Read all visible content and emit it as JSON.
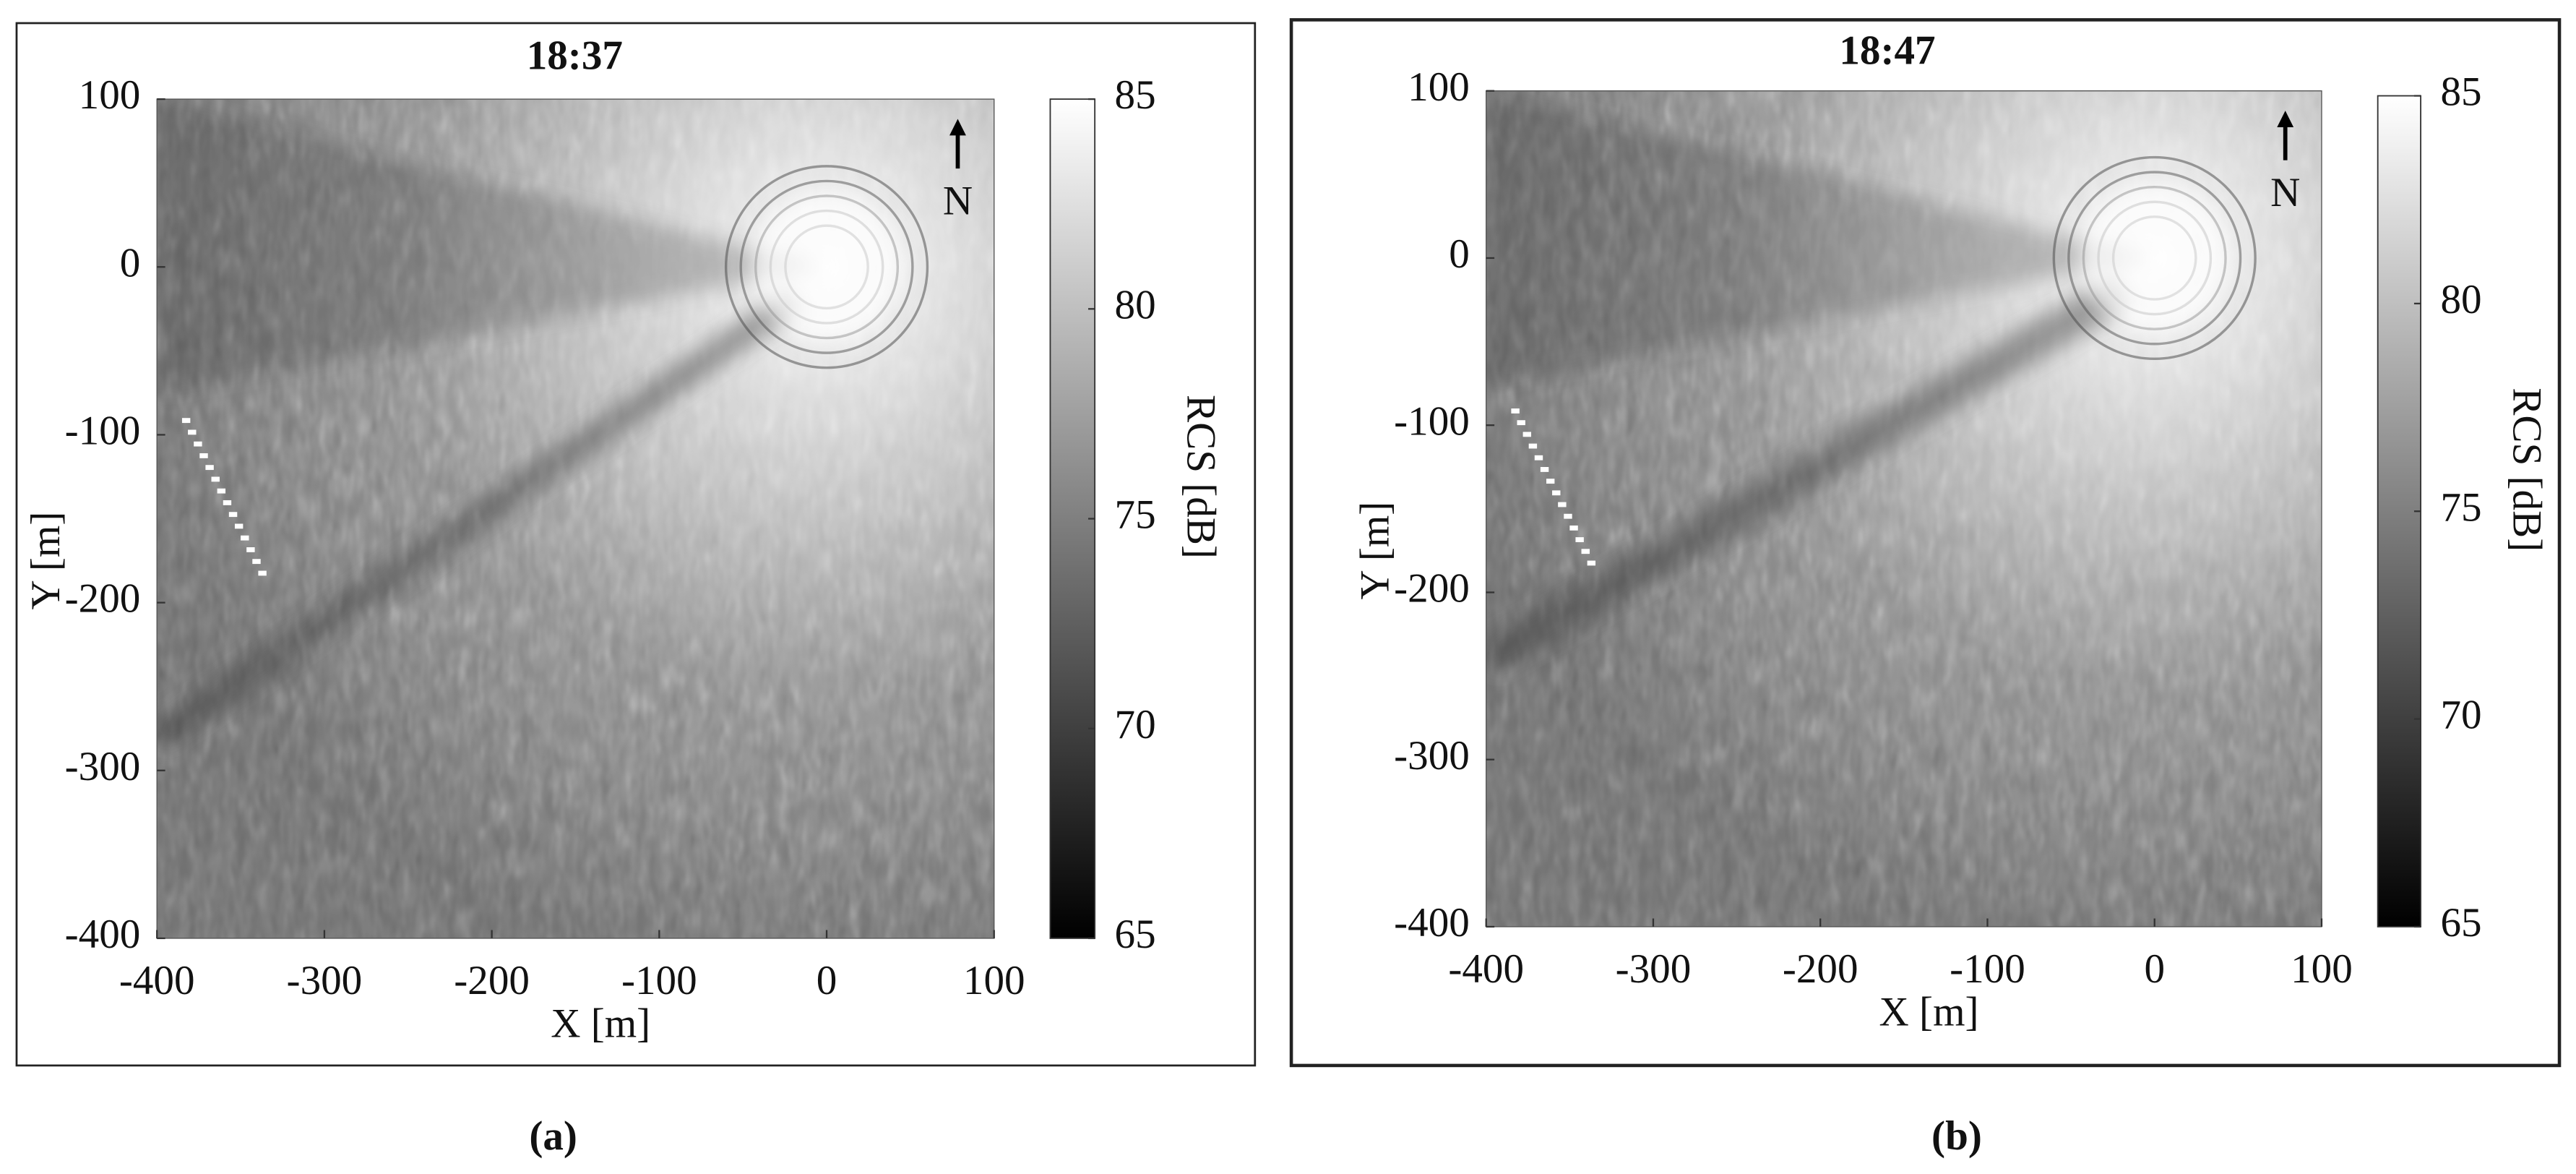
{
  "chart_data": [
    {
      "type": "heatmap",
      "title": "18:37",
      "caption": "(a)",
      "xlabel": "X [m]",
      "ylabel": "Y [m]",
      "colorbar_label": "RCS [dB]",
      "north_label": "N",
      "colormap": "gray",
      "xlim": [
        -400,
        100
      ],
      "ylim": [
        -400,
        100
      ],
      "xticks": [
        -400,
        -300,
        -200,
        -100,
        0,
        100
      ],
      "yticks": [
        -400,
        -300,
        -200,
        -100,
        0,
        100
      ],
      "clim": [
        65,
        85
      ],
      "cticks": [
        65,
        70,
        75,
        80,
        85
      ]
    },
    {
      "type": "heatmap",
      "title": "18:47",
      "caption": "(b)",
      "xlabel": "X [m]",
      "ylabel": "Y [m]",
      "colorbar_label": "RCS [dB]",
      "north_label": "N",
      "colormap": "gray",
      "xlim": [
        -400,
        100
      ],
      "ylim": [
        -400,
        100
      ],
      "xticks": [
        -400,
        -300,
        -200,
        -100,
        0,
        100
      ],
      "yticks": [
        -400,
        -300,
        -200,
        -100,
        0,
        100
      ],
      "clim": [
        65,
        85
      ],
      "cticks": [
        65,
        70,
        75,
        80,
        85
      ]
    }
  ]
}
